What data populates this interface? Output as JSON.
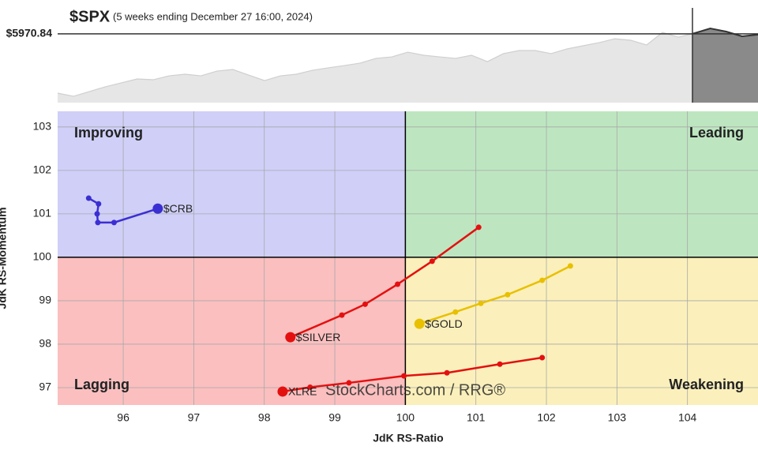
{
  "chart_data": [
    {
      "type": "area",
      "title": "$SPX",
      "subtitle": "(5 weeks ending December 27 16:00, 2024)",
      "last_label": "$5970.84",
      "last": 5970.84,
      "color": "#e6e6e6",
      "window_color": "#8a8a8a",
      "ylim": [
        5550,
        6130
      ],
      "values": [
        5608,
        5589,
        5618,
        5647,
        5671,
        5695,
        5690,
        5714,
        5724,
        5714,
        5743,
        5753,
        5719,
        5685,
        5714,
        5724,
        5748,
        5763,
        5777,
        5792,
        5821,
        5830,
        5859,
        5840,
        5830,
        5821,
        5840,
        5801,
        5850,
        5869,
        5869,
        5850,
        5879,
        5898,
        5917,
        5941,
        5932,
        5903,
        5980,
        5951,
        5975,
        6004,
        5985,
        5956,
        5966
      ]
    },
    {
      "type": "rrg",
      "x_label": "JdK RS-Ratio",
      "y_label": "JdK RS-Momentum",
      "xlim": [
        95.07,
        105
      ],
      "ylim": [
        96.6,
        103.36
      ],
      "xticks": [
        96,
        97,
        98,
        99,
        100,
        101,
        102,
        103,
        104
      ],
      "yticks": [
        97,
        98,
        99,
        100,
        101,
        102,
        103
      ],
      "center": {
        "x": 100,
        "y": 100
      },
      "grid": true,
      "quadrants": [
        {
          "name": "Improving",
          "color": "#cfcff8",
          "text_color": "#4a35d0"
        },
        {
          "name": "Leading",
          "color": "#bde6c0",
          "text_color": "#1a8a1a"
        },
        {
          "name": "Lagging",
          "color": "#fbbfbf",
          "text_color": "#e02020"
        },
        {
          "name": "Weakening",
          "color": "#fbf0bb",
          "text_color": "#e8c020"
        }
      ],
      "watermark": "StockCharts.com / RRG®",
      "series": [
        {
          "name": "$CRB",
          "color": "#3a2fd2",
          "x": [
            95.51,
            95.65,
            95.63,
            95.64,
            95.87,
            96.49
          ],
          "values": [
            101.36,
            101.23,
            101.0,
            100.8,
            100.8,
            101.12
          ]
        },
        {
          "name": "$SILVER",
          "color": "#e41010",
          "x": [
            101.04,
            100.38,
            99.89,
            99.43,
            99.1,
            98.37
          ],
          "values": [
            100.69,
            99.91,
            99.38,
            98.92,
            98.67,
            98.16
          ]
        },
        {
          "name": "$GOLD",
          "color": "#e8c000",
          "x": [
            102.34,
            101.94,
            101.45,
            101.07,
            100.71,
            100.2
          ],
          "values": [
            99.8,
            99.47,
            99.14,
            98.94,
            98.74,
            98.47
          ]
        },
        {
          "name": "XLRE",
          "color": "#e41010",
          "x": [
            101.94,
            101.34,
            100.59,
            99.98,
            99.2,
            98.65,
            98.26
          ],
          "values": [
            97.69,
            97.54,
            97.34,
            97.27,
            97.11,
            97.01,
            96.91
          ]
        }
      ]
    }
  ]
}
